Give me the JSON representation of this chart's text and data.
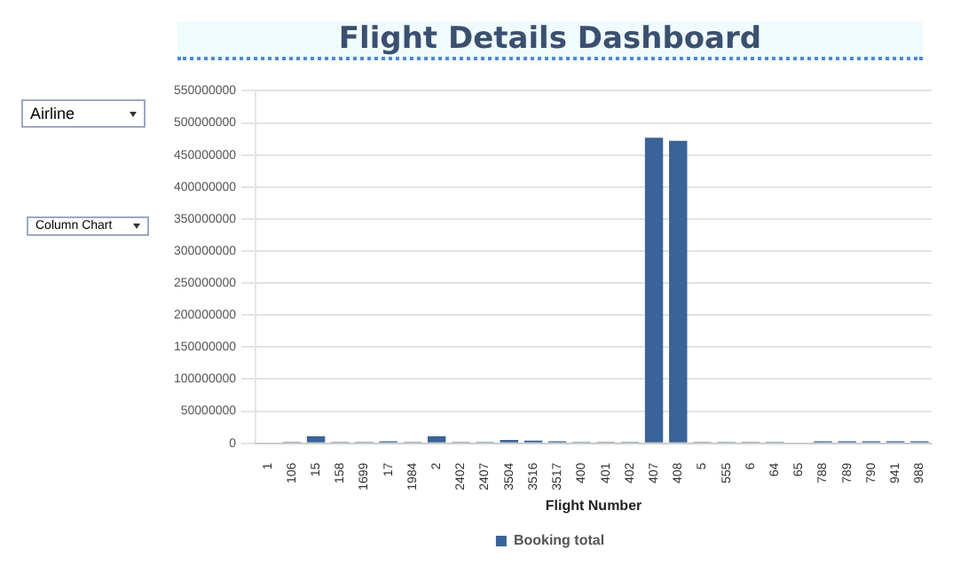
{
  "chart_data": {
    "type": "bar",
    "title": "Flight Details Dashboard",
    "xlabel": "Flight Number",
    "categories": [
      "1",
      "106",
      "15",
      "158",
      "1699",
      "17",
      "1984",
      "2",
      "2402",
      "2407",
      "3504",
      "3516",
      "3517",
      "400",
      "401",
      "402",
      "407",
      "408",
      "5",
      "555",
      "6",
      "64",
      "65",
      "788",
      "789",
      "790",
      "941",
      "988"
    ],
    "series": [
      {
        "name": "Booking total",
        "color": "#3a6398",
        "values": [
          0,
          2000000,
          11000000,
          2000000,
          2000000,
          3000000,
          2000000,
          11000000,
          2000000,
          2000000,
          5000000,
          4000000,
          3000000,
          2000000,
          2000000,
          2000000,
          477000000,
          472000000,
          2000000,
          2000000,
          2000000,
          2000000,
          0,
          3000000,
          3000000,
          3000000,
          3000000,
          3000000
        ]
      }
    ],
    "ylim": [
      0,
      550000000
    ],
    "yticks": [
      0,
      50000000,
      100000000,
      150000000,
      200000000,
      250000000,
      300000000,
      350000000,
      400000000,
      450000000,
      500000000,
      550000000
    ],
    "grid": "y",
    "legend": "bottom",
    "annotations": [
      "Airline",
      "Column Chart"
    ]
  }
}
